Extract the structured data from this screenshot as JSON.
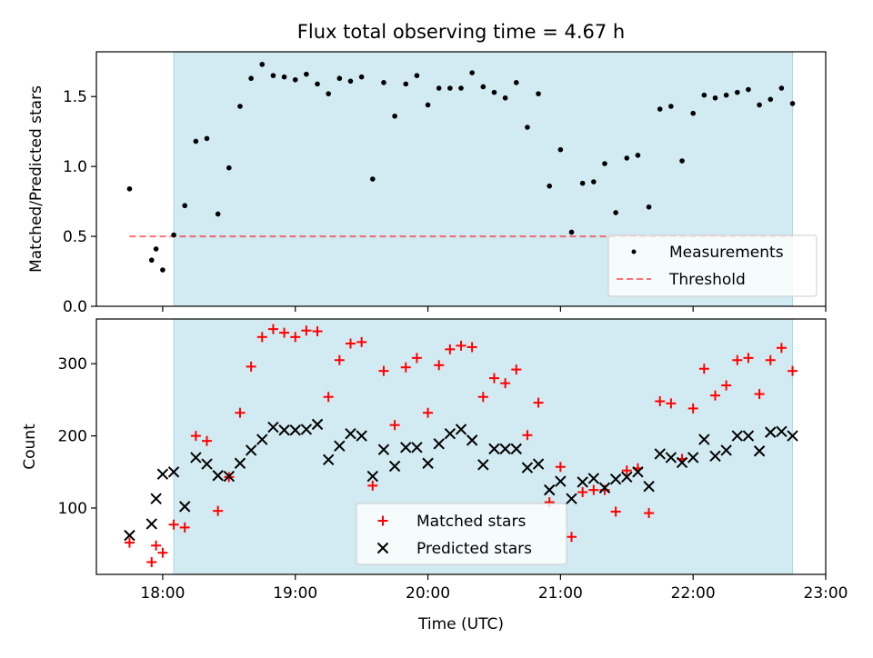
{
  "title": "Flux total observing time = 4.67 h",
  "colors": {
    "shade": "#add8e6",
    "measurement": "#000000",
    "threshold": "#ff0000",
    "matched": "#ff0000",
    "predicted": "#000000"
  },
  "chart_data": [
    {
      "type": "scatter",
      "ylabel": "Matched/Predicted stars",
      "ylim": [
        0,
        1.82
      ],
      "y_ticks": [
        "0.0",
        "0.5",
        "1.0",
        "1.5"
      ],
      "shaded_region": [
        "18:05",
        "22:45"
      ],
      "threshold": {
        "name": "Threshold",
        "value": 0.5,
        "x_range": [
          "17:45",
          "22:45"
        ]
      },
      "legend": {
        "placement": "lower-right",
        "entries": [
          "Measurements",
          "Threshold"
        ]
      },
      "series": [
        {
          "name": "Measurements",
          "x": [
            "17:45",
            "17:55",
            "17:57",
            "18:00",
            "18:05",
            "18:10",
            "18:15",
            "18:20",
            "18:25",
            "18:30",
            "18:35",
            "18:40",
            "18:45",
            "18:50",
            "18:55",
            "19:00",
            "19:05",
            "19:10",
            "19:15",
            "19:20",
            "19:25",
            "19:30",
            "19:35",
            "19:40",
            "19:45",
            "19:50",
            "19:55",
            "20:00",
            "20:05",
            "20:10",
            "20:15",
            "20:20",
            "20:25",
            "20:30",
            "20:35",
            "20:40",
            "20:45",
            "20:50",
            "20:55",
            "21:00",
            "21:05",
            "21:10",
            "21:15",
            "21:20",
            "21:25",
            "21:30",
            "21:35",
            "21:40",
            "21:45",
            "21:50",
            "21:55",
            "22:00",
            "22:05",
            "22:10",
            "22:15",
            "22:20",
            "22:25",
            "22:30",
            "22:35",
            "22:40",
            "22:45"
          ],
          "y": [
            0.84,
            0.33,
            0.41,
            0.26,
            0.51,
            0.72,
            1.18,
            1.2,
            0.66,
            0.99,
            1.43,
            1.63,
            1.73,
            1.65,
            1.64,
            1.62,
            1.66,
            1.59,
            1.52,
            1.63,
            1.61,
            1.64,
            0.91,
            1.6,
            1.36,
            1.59,
            1.65,
            1.44,
            1.56,
            1.56,
            1.56,
            1.67,
            1.57,
            1.53,
            1.49,
            1.6,
            1.28,
            1.52,
            0.86,
            1.12,
            0.53,
            0.88,
            0.89,
            1.02,
            0.67,
            1.06,
            1.08,
            0.71,
            1.41,
            1.43,
            1.04,
            1.38,
            1.51,
            1.49,
            1.51,
            1.53,
            1.55,
            1.44,
            1.48,
            1.56,
            1.45
          ]
        }
      ]
    },
    {
      "type": "scatter",
      "xlabel": "Time (UTC)",
      "ylabel": "Count",
      "xlim": [
        "17:30",
        "23:00"
      ],
      "ylim": [
        8,
        362
      ],
      "x_ticks": [
        "18:00",
        "19:00",
        "20:00",
        "21:00",
        "22:00",
        "23:00"
      ],
      "y_ticks": [
        "100",
        "200",
        "300"
      ],
      "shaded_region": [
        "18:05",
        "22:45"
      ],
      "legend": {
        "placement": "lower-center",
        "entries": [
          "Matched stars",
          "Predicted stars"
        ]
      },
      "series": [
        {
          "name": "Matched stars",
          "x": [
            "17:45",
            "17:55",
            "17:57",
            "18:00",
            "18:05",
            "18:10",
            "18:15",
            "18:20",
            "18:25",
            "18:30",
            "18:35",
            "18:40",
            "18:45",
            "18:50",
            "18:55",
            "19:00",
            "19:05",
            "19:10",
            "19:15",
            "19:20",
            "19:25",
            "19:30",
            "19:35",
            "19:40",
            "19:45",
            "19:50",
            "19:55",
            "20:00",
            "20:05",
            "20:10",
            "20:15",
            "20:20",
            "20:25",
            "20:30",
            "20:35",
            "20:40",
            "20:45",
            "20:50",
            "20:55",
            "21:00",
            "21:05",
            "21:10",
            "21:15",
            "21:20",
            "21:25",
            "21:30",
            "21:35",
            "21:40",
            "21:45",
            "21:50",
            "21:55",
            "22:00",
            "22:05",
            "22:10",
            "22:15",
            "22:20",
            "22:25",
            "22:30",
            "22:35",
            "22:40",
            "22:45"
          ],
          "y": [
            52,
            25,
            48,
            38,
            77,
            73,
            200,
            193,
            96,
            143,
            232,
            296,
            337,
            348,
            343,
            337,
            346,
            345,
            254,
            305,
            328,
            330,
            131,
            290,
            215,
            295,
            308,
            232,
            298,
            320,
            325,
            323,
            254,
            280,
            273,
            292,
            201,
            246,
            108,
            157,
            60,
            122,
            125,
            125,
            95,
            152,
            155,
            93,
            248,
            245,
            168,
            238,
            293,
            256,
            270,
            305,
            308,
            258,
            305,
            322,
            290
          ]
        },
        {
          "name": "Predicted stars",
          "x": [
            "17:45",
            "17:55",
            "17:57",
            "18:00",
            "18:05",
            "18:10",
            "18:15",
            "18:20",
            "18:25",
            "18:30",
            "18:35",
            "18:40",
            "18:45",
            "18:50",
            "18:55",
            "19:00",
            "19:05",
            "19:10",
            "19:15",
            "19:20",
            "19:25",
            "19:30",
            "19:35",
            "19:40",
            "19:45",
            "19:50",
            "19:55",
            "20:00",
            "20:05",
            "20:10",
            "20:15",
            "20:20",
            "20:25",
            "20:30",
            "20:35",
            "20:40",
            "20:45",
            "20:50",
            "20:55",
            "21:00",
            "21:05",
            "21:10",
            "21:15",
            "21:20",
            "21:25",
            "21:30",
            "21:35",
            "21:40",
            "21:45",
            "21:50",
            "21:55",
            "22:00",
            "22:05",
            "22:10",
            "22:15",
            "22:20",
            "22:25",
            "22:30",
            "22:35",
            "22:40",
            "22:45"
          ],
          "y": [
            62,
            78,
            113,
            147,
            150,
            102,
            170,
            161,
            145,
            144,
            162,
            180,
            195,
            212,
            208,
            208,
            209,
            216,
            167,
            186,
            203,
            200,
            144,
            181,
            158,
            184,
            184,
            162,
            189,
            203,
            209,
            194,
            160,
            182,
            182,
            182,
            156,
            161,
            125,
            137,
            113,
            136,
            141,
            128,
            140,
            143,
            150,
            130,
            175,
            170,
            163,
            170,
            195,
            172,
            180,
            200,
            200,
            179,
            205,
            206,
            200
          ]
        }
      ]
    }
  ]
}
